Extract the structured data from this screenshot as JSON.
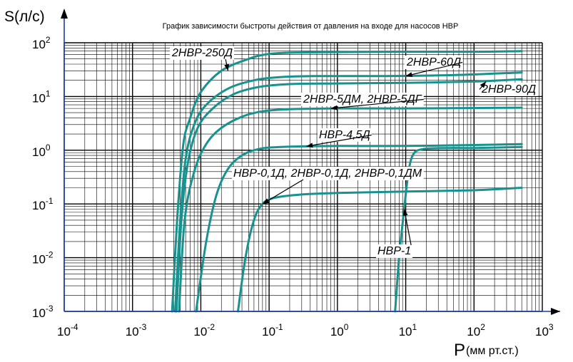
{
  "chart_data": {
    "type": "line",
    "title": "График зависимости быстроты действия от давления на входе для насосов НВР",
    "ylabel": "S(л/с)",
    "xlabel_symbol": "P",
    "xlabel_unit": "(мм рт.ст.)",
    "x_scale": "log",
    "y_scale": "log",
    "xlim": [
      0.0001,
      1000
    ],
    "ylim": [
      0.001,
      100
    ],
    "grid": true,
    "x_ticks": [
      {
        "base": "10",
        "exp": "-4",
        "value": 0.0001
      },
      {
        "base": "10",
        "exp": "-3",
        "value": 0.001
      },
      {
        "base": "10",
        "exp": "-2",
        "value": 0.01
      },
      {
        "base": "10",
        "exp": "-1",
        "value": 0.1
      },
      {
        "base": "10",
        "exp": "0",
        "value": 1
      },
      {
        "base": "10",
        "exp": "1",
        "value": 10
      },
      {
        "base": "10",
        "exp": "2",
        "value": 100
      },
      {
        "base": "10",
        "exp": "3",
        "value": 1000
      }
    ],
    "y_ticks": [
      {
        "base": "10",
        "exp": "-3",
        "value": 0.001
      },
      {
        "base": "10",
        "exp": "-2",
        "value": 0.01
      },
      {
        "base": "10",
        "exp": "-1",
        "value": 0.1
      },
      {
        "base": "10",
        "exp": "0",
        "value": 1
      },
      {
        "base": "10",
        "exp": "1",
        "value": 10
      },
      {
        "base": "10",
        "exp": "2",
        "value": 100
      }
    ],
    "series": [
      {
        "name": "2НВР-250Д",
        "points": [
          [
            0.0038,
            0.001
          ],
          [
            0.0045,
            0.05
          ],
          [
            0.0055,
            1.2
          ],
          [
            0.007,
            4
          ],
          [
            0.01,
            12
          ],
          [
            0.02,
            30
          ],
          [
            0.05,
            50
          ],
          [
            0.1,
            62
          ],
          [
            0.3,
            66
          ],
          [
            1,
            67
          ],
          [
            10,
            68
          ],
          [
            100,
            68
          ],
          [
            500,
            70
          ]
        ]
      },
      {
        "name": "2НВР-60Д",
        "points": [
          [
            0.0042,
            0.001
          ],
          [
            0.005,
            0.05
          ],
          [
            0.006,
            0.7
          ],
          [
            0.008,
            3
          ],
          [
            0.012,
            7
          ],
          [
            0.025,
            14
          ],
          [
            0.06,
            20
          ],
          [
            0.15,
            23
          ],
          [
            0.5,
            24
          ],
          [
            5,
            24
          ],
          [
            50,
            25
          ],
          [
            500,
            28
          ]
        ]
      },
      {
        "name": "2НВР-90Д",
        "points": [
          [
            0.0044,
            0.001
          ],
          [
            0.0052,
            0.05
          ],
          [
            0.0065,
            0.6
          ],
          [
            0.009,
            2.6
          ],
          [
            0.015,
            6
          ],
          [
            0.03,
            11
          ],
          [
            0.07,
            15
          ],
          [
            0.2,
            17
          ],
          [
            1,
            17.5
          ],
          [
            10,
            18
          ],
          [
            100,
            19
          ],
          [
            500,
            21
          ]
        ]
      },
      {
        "name": "2НВР-5ДМ, 2НВР-5ДГ",
        "points": [
          [
            0.0048,
            0.001
          ],
          [
            0.0058,
            0.05
          ],
          [
            0.008,
            0.4
          ],
          [
            0.012,
            1.3
          ],
          [
            0.02,
            2.6
          ],
          [
            0.04,
            4.2
          ],
          [
            0.08,
            5.3
          ],
          [
            0.2,
            5.8
          ],
          [
            1,
            6
          ],
          [
            10,
            6
          ],
          [
            100,
            6.1
          ],
          [
            500,
            6.2
          ]
        ]
      },
      {
        "name": "НВР-4,5Д",
        "points": [
          [
            0.0085,
            0.001
          ],
          [
            0.012,
            0.02
          ],
          [
            0.017,
            0.15
          ],
          [
            0.025,
            0.45
          ],
          [
            0.04,
            0.8
          ],
          [
            0.07,
            1.05
          ],
          [
            0.15,
            1.15
          ],
          [
            1,
            1.2
          ],
          [
            10,
            1.2
          ],
          [
            100,
            1.25
          ],
          [
            500,
            1.3
          ]
        ]
      },
      {
        "name": "НВР-0,1Д, 2НВР-0,1Д, 2НВР-0,1ДМ",
        "points": [
          [
            0.035,
            0.001
          ],
          [
            0.045,
            0.01
          ],
          [
            0.06,
            0.05
          ],
          [
            0.08,
            0.1
          ],
          [
            0.12,
            0.13
          ],
          [
            0.3,
            0.15
          ],
          [
            1,
            0.16
          ],
          [
            10,
            0.17
          ],
          [
            100,
            0.18
          ],
          [
            500,
            0.2
          ]
        ]
      },
      {
        "name": "НВР-1",
        "points": [
          [
            7,
            0.001
          ],
          [
            8,
            0.01
          ],
          [
            9.5,
            0.08
          ],
          [
            11,
            0.4
          ],
          [
            13,
            0.85
          ],
          [
            18,
            1.05
          ],
          [
            40,
            1.1
          ],
          [
            100,
            1.1
          ],
          [
            500,
            1.15
          ]
        ]
      }
    ],
    "annotations": [
      {
        "text": "2НВР-250Д",
        "series": "2НВР-250Д"
      },
      {
        "text": "2НВР-60Д",
        "series": "2НВР-60Д"
      },
      {
        "text": "2НВР-90Д",
        "series": "2НВР-90Д"
      },
      {
        "text": "2НВР-5ДМ, 2НВР-5ДГ",
        "series": "2НВР-5ДМ, 2НВР-5ДГ"
      },
      {
        "text": "НВР-4,5Д",
        "series": "НВР-4,5Д"
      },
      {
        "text": "НВР-0,1Д, 2НВР-0,1Д, 2НВР-0,1ДМ",
        "series": "НВР-0,1Д, 2НВР-0,1Д, 2НВР-0,1ДМ"
      },
      {
        "text": "НВР-1",
        "series": "НВР-1"
      }
    ],
    "colors": {
      "curve": "#17928f",
      "axis": "#1c3fa0",
      "grid": "#000000"
    }
  }
}
